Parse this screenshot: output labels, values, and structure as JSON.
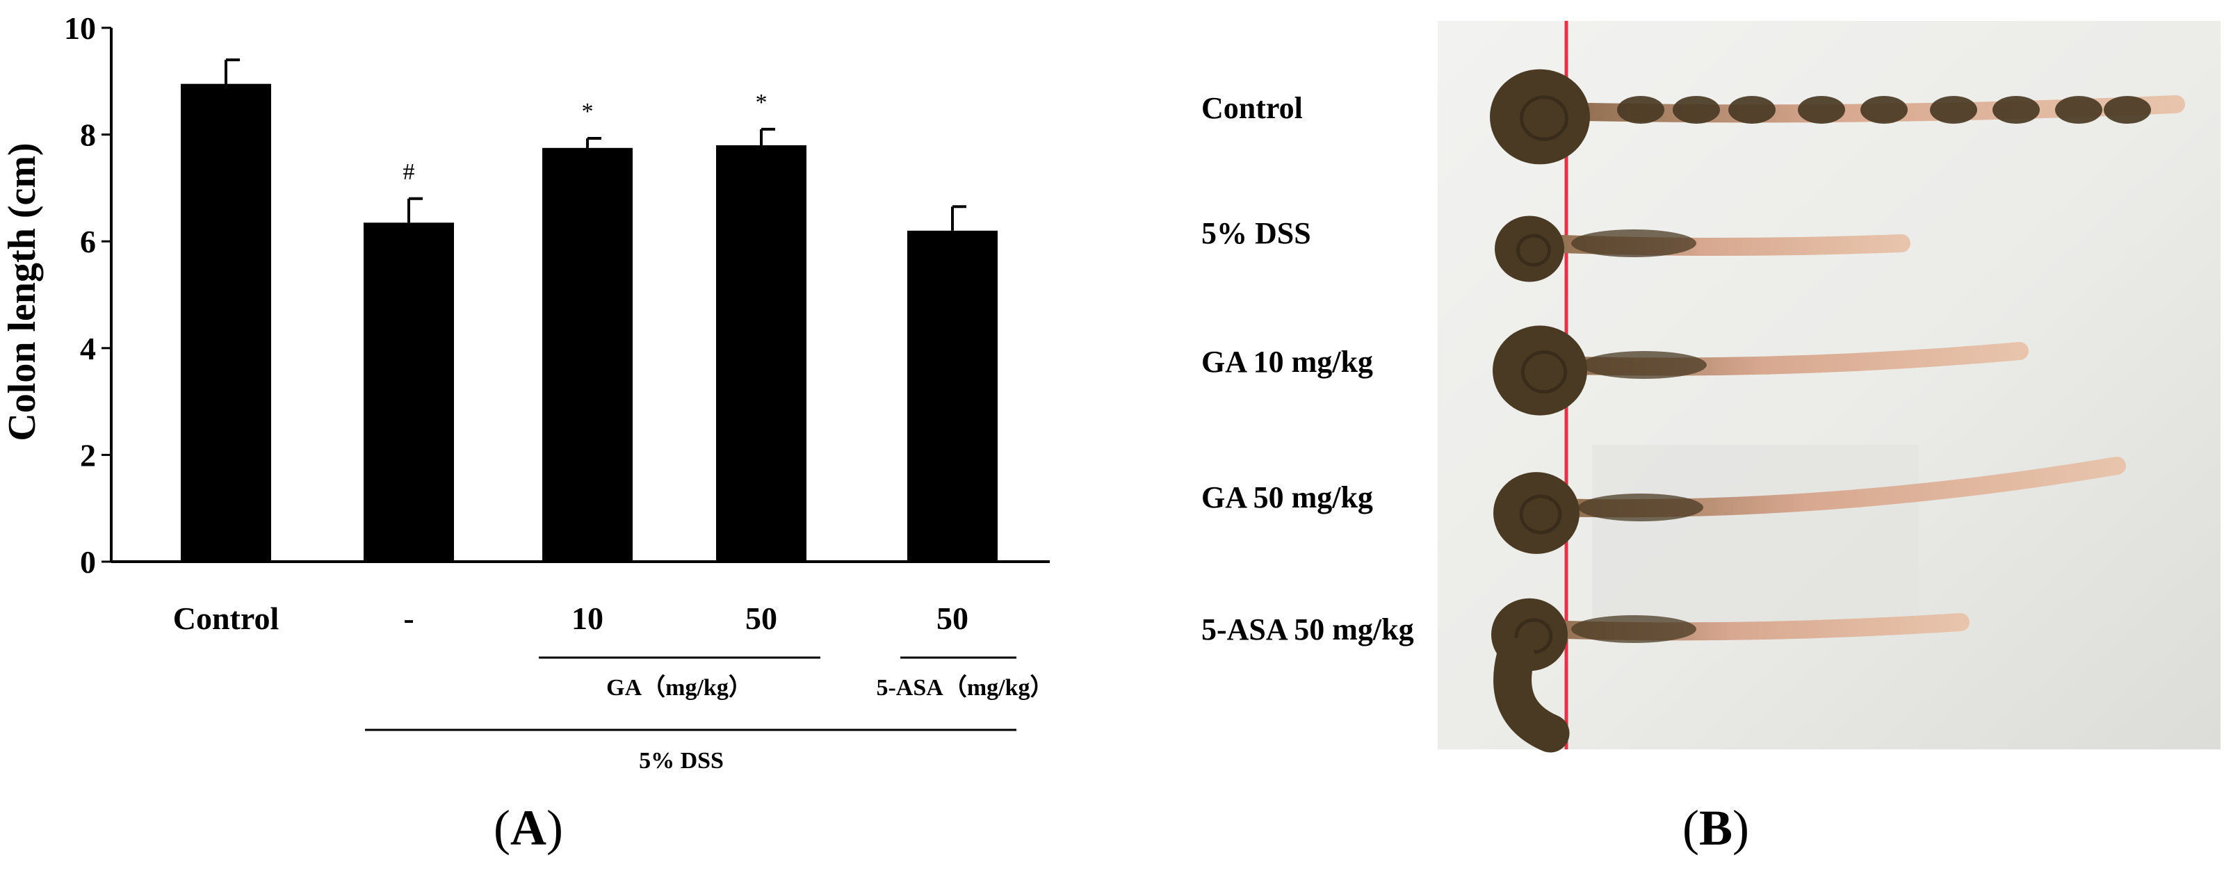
{
  "chart_data": {
    "type": "bar",
    "panel_label": "(A)",
    "ylabel": "Colon length (cm)",
    "ylim": [
      0,
      10
    ],
    "yticks": [
      "0",
      "2",
      "4",
      "6",
      "8",
      "10"
    ],
    "categories": [
      "Control",
      "-",
      "10",
      "50",
      "50"
    ],
    "values": [
      8.95,
      6.35,
      7.75,
      7.8,
      6.2
    ],
    "errors": [
      0.45,
      0.45,
      0.18,
      0.3,
      0.45
    ],
    "significance": [
      "",
      "#",
      "*",
      "*",
      ""
    ],
    "bar_color": "#000000",
    "groups": {
      "ga": "GA（mg/kg）",
      "asa": "5-ASA（mg/kg）",
      "dss": "5% DSS"
    }
  },
  "photo": {
    "panel_label": "(B)",
    "labels": [
      "Control",
      "5% DSS",
      "GA 10 mg/kg",
      "GA 50 mg/kg",
      "5-ASA 50 mg/kg"
    ],
    "background_color": "#ededeb",
    "colon_dark_color": "#4a3a24",
    "colon_light_color": "#e0b49a",
    "ruler_color": "#e8304a"
  }
}
